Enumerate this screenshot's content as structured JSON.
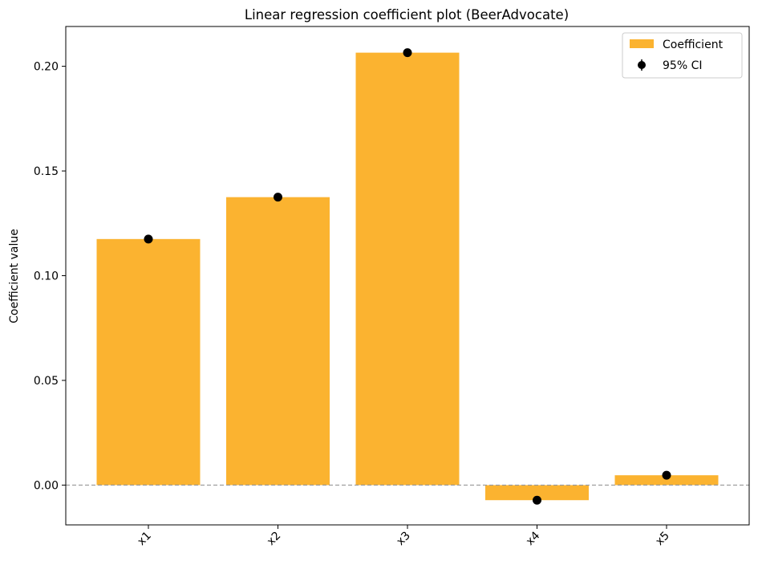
{
  "chart_data": {
    "type": "bar",
    "title": "Linear regression coefficient plot (BeerAdvocate)",
    "xlabel": "",
    "ylabel": "Coefficient value",
    "categories": [
      "x1",
      "x2",
      "x3",
      "x4",
      "x5"
    ],
    "values": [
      0.1175,
      0.1375,
      0.2065,
      -0.0072,
      0.0047
    ],
    "ci_points": [
      0.1175,
      0.1375,
      0.2065,
      -0.0072,
      0.0047
    ],
    "ylim": [
      -0.019,
      0.219
    ],
    "yticks": [
      0.0,
      0.05,
      0.1,
      0.15,
      0.2
    ],
    "ytick_labels": [
      "0.00",
      "0.05",
      "0.10",
      "0.15",
      "0.20"
    ],
    "zero_line": true,
    "grid": false,
    "legend": {
      "position": "top-right",
      "entries": [
        {
          "label": "Coefficient",
          "marker": "bar"
        },
        {
          "label": "95% CI",
          "marker": "errorbar"
        }
      ]
    },
    "colors": {
      "bar": "#fbb330",
      "point": "#000000",
      "zero_line": "#999999"
    }
  }
}
